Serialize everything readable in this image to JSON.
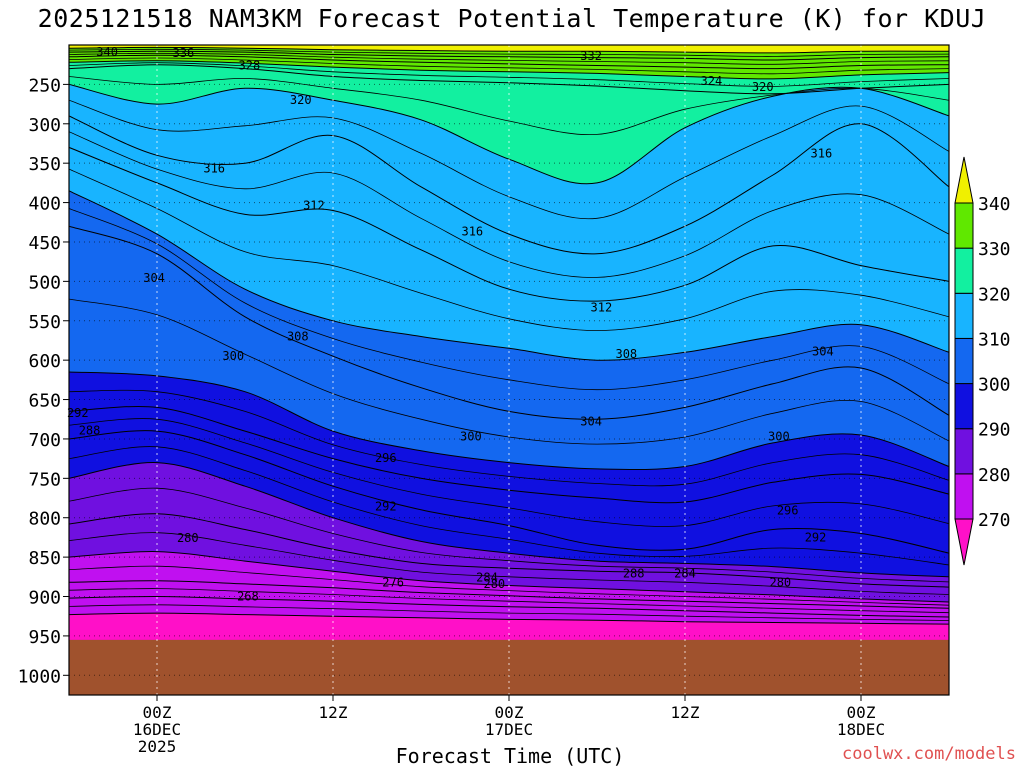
{
  "title": "2025121518 NAM3KM Forecast Potential Temperature (K) for KDUJ",
  "credit": "coolwx.com/models",
  "chart_data": {
    "type": "contour-fill",
    "title": "2025121518 NAM3KM Forecast Potential Temperature (K) for KDUJ",
    "xlabel": "Forecast Time (UTC)",
    "ylabel": "Pressure (hPa)",
    "y_ticks": [
      250,
      300,
      350,
      400,
      450,
      500,
      550,
      600,
      650,
      700,
      750,
      800,
      850,
      900,
      950,
      1000
    ],
    "ylim": [
      200,
      1025
    ],
    "x_range_hours": [
      -6,
      54
    ],
    "x_ticks": [
      {
        "hour": 0,
        "lines": [
          "00Z",
          "16DEC",
          "2025"
        ]
      },
      {
        "hour": 12,
        "lines": [
          "12Z"
        ]
      },
      {
        "hour": 24,
        "lines": [
          "00Z",
          "17DEC"
        ]
      },
      {
        "hour": 36,
        "lines": [
          "12Z"
        ]
      },
      {
        "hour": 48,
        "lines": [
          "00Z",
          "18DEC"
        ]
      }
    ],
    "colorbar": {
      "levels": [
        270,
        280,
        290,
        300,
        310,
        320,
        330,
        340
      ],
      "colors": [
        "#ff10c8",
        "#c010f0",
        "#7010e0",
        "#1010e0",
        "#1468f0",
        "#18b4ff",
        "#12f0a0",
        "#60e800",
        "#f0f000"
      ]
    },
    "surface_pressure": 955,
    "ground_color": "#a0522d",
    "isentropes": [
      {
        "theta": 268,
        "points": [
          [
            -6,
            923
          ],
          [
            0,
            921
          ],
          [
            6,
            923
          ],
          [
            12,
            925
          ],
          [
            18,
            927
          ],
          [
            24,
            929
          ],
          [
            30,
            930
          ],
          [
            36,
            932
          ],
          [
            42,
            933
          ],
          [
            48,
            934
          ],
          [
            54,
            935
          ]
        ]
      },
      {
        "theta": 272,
        "points": [
          [
            -6,
            902
          ],
          [
            0,
            900
          ],
          [
            6,
            903
          ],
          [
            12,
            906
          ],
          [
            18,
            910
          ],
          [
            24,
            913
          ],
          [
            30,
            915
          ],
          [
            36,
            918
          ],
          [
            42,
            921
          ],
          [
            48,
            924
          ],
          [
            54,
            926
          ]
        ]
      },
      {
        "theta": 276,
        "points": [
          [
            -6,
            882
          ],
          [
            0,
            880
          ],
          [
            6,
            884
          ],
          [
            12,
            889
          ],
          [
            18,
            895
          ],
          [
            24,
            899
          ],
          [
            30,
            903
          ],
          [
            36,
            906
          ],
          [
            42,
            909
          ],
          [
            48,
            912
          ],
          [
            54,
            915
          ]
        ]
      },
      {
        "theta": 280,
        "points": [
          [
            -6,
            850
          ],
          [
            0,
            843
          ],
          [
            6,
            855
          ],
          [
            12,
            868
          ],
          [
            18,
            880
          ],
          [
            24,
            886
          ],
          [
            30,
            890
          ],
          [
            36,
            894
          ],
          [
            42,
            898
          ],
          [
            48,
            903
          ],
          [
            54,
            907
          ]
        ]
      },
      {
        "theta": 284,
        "points": [
          [
            -6,
            808
          ],
          [
            0,
            795
          ],
          [
            6,
            815
          ],
          [
            12,
            840
          ],
          [
            18,
            858
          ],
          [
            24,
            864
          ],
          [
            30,
            868
          ],
          [
            36,
            870
          ],
          [
            42,
            876
          ],
          [
            48,
            884
          ],
          [
            54,
            888
          ]
        ]
      },
      {
        "theta": 288,
        "points": [
          [
            -6,
            750
          ],
          [
            0,
            730
          ],
          [
            6,
            760
          ],
          [
            12,
            800
          ],
          [
            18,
            830
          ],
          [
            24,
            845
          ],
          [
            30,
            855
          ],
          [
            36,
            858
          ],
          [
            42,
            862
          ],
          [
            48,
            870
          ],
          [
            54,
            875
          ]
        ]
      },
      {
        "theta": 292,
        "points": [
          [
            -6,
            700
          ],
          [
            0,
            690
          ],
          [
            6,
            720
          ],
          [
            12,
            760
          ],
          [
            18,
            790
          ],
          [
            24,
            810
          ],
          [
            30,
            835
          ],
          [
            36,
            840
          ],
          [
            42,
            815
          ],
          [
            48,
            820
          ],
          [
            54,
            845
          ]
        ]
      },
      {
        "theta": 296,
        "points": [
          [
            -6,
            665
          ],
          [
            0,
            660
          ],
          [
            6,
            690
          ],
          [
            12,
            725
          ],
          [
            18,
            750
          ],
          [
            24,
            765
          ],
          [
            30,
            775
          ],
          [
            36,
            780
          ],
          [
            42,
            755
          ],
          [
            48,
            745
          ],
          [
            54,
            770
          ]
        ]
      },
      {
        "theta": 300,
        "points": [
          [
            -6,
            615
          ],
          [
            0,
            620
          ],
          [
            6,
            640
          ],
          [
            12,
            690
          ],
          [
            18,
            715
          ],
          [
            24,
            730
          ],
          [
            30,
            738
          ],
          [
            36,
            735
          ],
          [
            42,
            705
          ],
          [
            48,
            695
          ],
          [
            54,
            735
          ]
        ]
      },
      {
        "theta": 304,
        "points": [
          [
            -6,
            430
          ],
          [
            0,
            465
          ],
          [
            6,
            545
          ],
          [
            12,
            595
          ],
          [
            18,
            635
          ],
          [
            24,
            665
          ],
          [
            30,
            675
          ],
          [
            36,
            660
          ],
          [
            42,
            630
          ],
          [
            48,
            610
          ],
          [
            54,
            670
          ]
        ]
      },
      {
        "theta": 308,
        "points": [
          [
            -6,
            385
          ],
          [
            0,
            440
          ],
          [
            6,
            510
          ],
          [
            12,
            550
          ],
          [
            18,
            570
          ],
          [
            24,
            585
          ],
          [
            30,
            600
          ],
          [
            36,
            590
          ],
          [
            42,
            570
          ],
          [
            48,
            555
          ],
          [
            54,
            590
          ]
        ]
      },
      {
        "theta": 312,
        "points": [
          [
            -6,
            330
          ],
          [
            0,
            375
          ],
          [
            6,
            415
          ],
          [
            12,
            410
          ],
          [
            18,
            460
          ],
          [
            24,
            510
          ],
          [
            30,
            525
          ],
          [
            36,
            505
          ],
          [
            42,
            455
          ],
          [
            48,
            480
          ],
          [
            54,
            500
          ]
        ]
      },
      {
        "theta": 316,
        "points": [
          [
            -6,
            290
          ],
          [
            0,
            340
          ],
          [
            6,
            350
          ],
          [
            12,
            315
          ],
          [
            18,
            380
          ],
          [
            24,
            440
          ],
          [
            30,
            465
          ],
          [
            36,
            430
          ],
          [
            42,
            365
          ],
          [
            48,
            300
          ],
          [
            54,
            380
          ]
        ]
      },
      {
        "theta": 320,
        "points": [
          [
            -6,
            250
          ],
          [
            0,
            275
          ],
          [
            6,
            255
          ],
          [
            12,
            270
          ],
          [
            18,
            295
          ],
          [
            24,
            345
          ],
          [
            30,
            375
          ],
          [
            36,
            305
          ],
          [
            42,
            265
          ],
          [
            48,
            255
          ],
          [
            54,
            290
          ]
        ]
      },
      {
        "theta": 324,
        "points": [
          [
            -6,
            230
          ],
          [
            0,
            225
          ],
          [
            6,
            230
          ],
          [
            12,
            240
          ],
          [
            18,
            245
          ],
          [
            24,
            248
          ],
          [
            30,
            252
          ],
          [
            36,
            258
          ],
          [
            42,
            262
          ],
          [
            48,
            255
          ],
          [
            54,
            250
          ]
        ]
      },
      {
        "theta": 328,
        "points": [
          [
            -6,
            222
          ],
          [
            0,
            220
          ],
          [
            6,
            223
          ],
          [
            12,
            228
          ],
          [
            18,
            232
          ],
          [
            24,
            234
          ],
          [
            30,
            236
          ],
          [
            36,
            240
          ],
          [
            42,
            243
          ],
          [
            48,
            238
          ],
          [
            54,
            235
          ]
        ]
      },
      {
        "theta": 332,
        "points": [
          [
            -6,
            215
          ],
          [
            0,
            213
          ],
          [
            6,
            215
          ],
          [
            12,
            219
          ],
          [
            18,
            222
          ],
          [
            24,
            224
          ],
          [
            30,
            226
          ],
          [
            36,
            228
          ],
          [
            42,
            230
          ],
          [
            48,
            226
          ],
          [
            54,
            225
          ]
        ]
      },
      {
        "theta": 336,
        "points": [
          [
            -6,
            209
          ],
          [
            0,
            208
          ],
          [
            6,
            209
          ],
          [
            12,
            212
          ],
          [
            18,
            214
          ],
          [
            24,
            215
          ],
          [
            30,
            216
          ],
          [
            36,
            217
          ],
          [
            42,
            219
          ],
          [
            48,
            216
          ],
          [
            54,
            215
          ]
        ]
      },
      {
        "theta": 340,
        "points": [
          [
            -6,
            204
          ],
          [
            0,
            203
          ],
          [
            6,
            204
          ],
          [
            12,
            206
          ],
          [
            18,
            207
          ],
          [
            24,
            208
          ],
          [
            30,
            208
          ],
          [
            36,
            209
          ],
          [
            42,
            210
          ],
          [
            48,
            208
          ],
          [
            54,
            208
          ]
        ]
      }
    ],
    "contour_labels": [
      {
        "text": "340",
        "hour": -3.4,
        "p": 209
      },
      {
        "text": "336",
        "hour": 1.8,
        "p": 210
      },
      {
        "text": "328",
        "hour": 6.3,
        "p": 226
      },
      {
        "text": "332",
        "hour": 29.6,
        "p": 214
      },
      {
        "text": "324",
        "hour": 37.8,
        "p": 246
      },
      {
        "text": "320",
        "hour": 41.3,
        "p": 253
      },
      {
        "text": "320",
        "hour": 9.8,
        "p": 270
      },
      {
        "text": "316",
        "hour": 3.9,
        "p": 357
      },
      {
        "text": "316",
        "hour": 45.3,
        "p": 338
      },
      {
        "text": "312",
        "hour": 10.7,
        "p": 404
      },
      {
        "text": "316",
        "hour": 21.5,
        "p": 437
      },
      {
        "text": "304",
        "hour": -0.2,
        "p": 496
      },
      {
        "text": "312",
        "hour": 30.3,
        "p": 533
      },
      {
        "text": "308",
        "hour": 9.6,
        "p": 570
      },
      {
        "text": "308",
        "hour": 32.0,
        "p": 592
      },
      {
        "text": "300",
        "hour": 5.2,
        "p": 595
      },
      {
        "text": "304",
        "hour": 45.4,
        "p": 589
      },
      {
        "text": "292",
        "hour": -5.4,
        "p": 667
      },
      {
        "text": "304",
        "hour": 29.6,
        "p": 678
      },
      {
        "text": "288",
        "hour": -4.6,
        "p": 689
      },
      {
        "text": "300",
        "hour": 21.4,
        "p": 697
      },
      {
        "text": "300",
        "hour": 42.4,
        "p": 697
      },
      {
        "text": "296",
        "hour": 15.6,
        "p": 724
      },
      {
        "text": "292",
        "hour": 15.6,
        "p": 786
      },
      {
        "text": "296",
        "hour": 43.0,
        "p": 791
      },
      {
        "text": "292",
        "hour": 44.9,
        "p": 825
      },
      {
        "text": "280",
        "hour": 2.1,
        "p": 826
      },
      {
        "text": "288",
        "hour": 32.5,
        "p": 871
      },
      {
        "text": "284",
        "hour": 36.0,
        "p": 871
      },
      {
        "text": "284",
        "hour": 22.5,
        "p": 876
      },
      {
        "text": "276",
        "hour": 16.1,
        "p": 882
      },
      {
        "text": "280",
        "hour": 23.0,
        "p": 884
      },
      {
        "text": "280",
        "hour": 42.5,
        "p": 882
      },
      {
        "text": "268",
        "hour": 6.2,
        "p": 900
      }
    ]
  }
}
